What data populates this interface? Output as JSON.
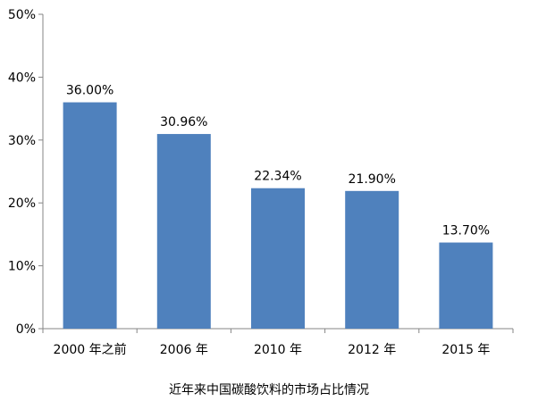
{
  "chart_data": {
    "type": "bar",
    "categories": [
      "2000 年之前",
      "2006 年",
      "2010 年",
      "2012 年",
      "2015 年"
    ],
    "values": [
      36.0,
      30.96,
      22.34,
      21.9,
      13.7
    ],
    "data_labels": [
      "36.00%",
      "30.96%",
      "22.34%",
      "21.90%",
      "13.70%"
    ],
    "y_tick_labels": [
      "0%",
      "10%",
      "20%",
      "30%",
      "40%",
      "50%"
    ],
    "y_ticks": [
      0,
      10,
      20,
      30,
      40,
      50
    ],
    "ylim": [
      0,
      50
    ],
    "bar_color": "#4f81bd",
    "axis_color": "#868686",
    "grid": false,
    "legend": "none"
  },
  "caption": "近年来中国碳酸饮料的市场占比情况"
}
